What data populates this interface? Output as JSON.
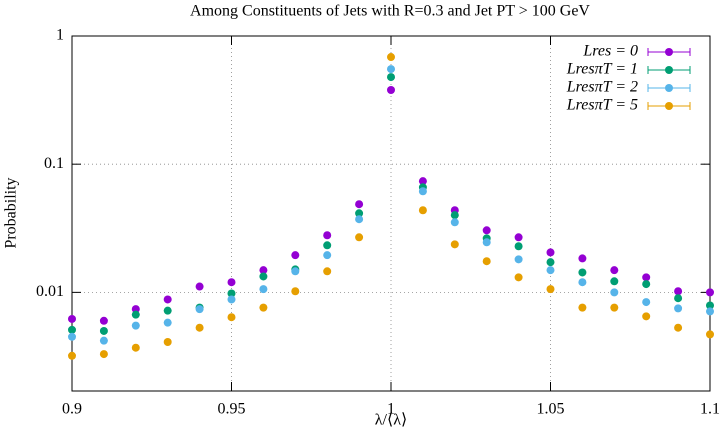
{
  "chart_data": {
    "type": "scatter",
    "title": "Among Constituents of Jets with R=0.3 and Jet PT > 100 GeV",
    "x_label": "λ/⟨λ⟩",
    "y_label": "Probability",
    "x": [
      0.9,
      0.91,
      0.92,
      0.93,
      0.94,
      0.95,
      0.96,
      0.97,
      0.98,
      0.99,
      1.0,
      1.01,
      1.02,
      1.03,
      1.04,
      1.05,
      1.06,
      1.07,
      1.08,
      1.09,
      1.1
    ],
    "series": [
      {
        "name": "Lres = 0",
        "color": "#9400d3",
        "values": [
          0.0062,
          0.006,
          0.0074,
          0.0088,
          0.0111,
          0.012,
          0.0149,
          0.0195,
          0.0279,
          0.0487,
          0.379,
          0.0737,
          0.0437,
          0.0305,
          0.0269,
          0.0205,
          0.0184,
          0.0149,
          0.0131,
          0.0102,
          0.01
        ]
      },
      {
        "name": "LresπT = 1",
        "color": "#009e73",
        "values": [
          0.0051,
          0.005,
          0.0067,
          0.0072,
          0.0076,
          0.0098,
          0.0133,
          0.0151,
          0.0233,
          0.0414,
          0.478,
          0.066,
          0.04,
          0.0264,
          0.0229,
          0.0172,
          0.0143,
          0.0122,
          0.0116,
          0.009,
          0.0079
        ]
      },
      {
        "name": "LresπT = 2",
        "color": "#56b4e9",
        "values": [
          0.0045,
          0.0042,
          0.0055,
          0.0058,
          0.0074,
          0.0088,
          0.0106,
          0.0146,
          0.0195,
          0.0372,
          0.552,
          0.0615,
          0.0352,
          0.0246,
          0.0181,
          0.0149,
          0.012,
          0.01,
          0.0084,
          0.0075,
          0.0071
        ]
      },
      {
        "name": "LresπT = 5",
        "color": "#e69f00",
        "values": [
          0.0032,
          0.0033,
          0.0037,
          0.0041,
          0.0053,
          0.0064,
          0.0076,
          0.0102,
          0.0146,
          0.0269,
          0.685,
          0.0437,
          0.0237,
          0.0175,
          0.0131,
          0.0106,
          0.0076,
          0.0076,
          0.0065,
          0.0053,
          0.0047
        ]
      }
    ],
    "xlim": [
      0.9,
      1.1
    ],
    "xticks": [
      0.9,
      0.95,
      1,
      1.05,
      1.1
    ],
    "ylim": [
      0.0017,
      1
    ],
    "yticks": [
      0.01,
      0.1,
      1
    ],
    "log_y": true,
    "grid": true,
    "legend": "top-right"
  }
}
